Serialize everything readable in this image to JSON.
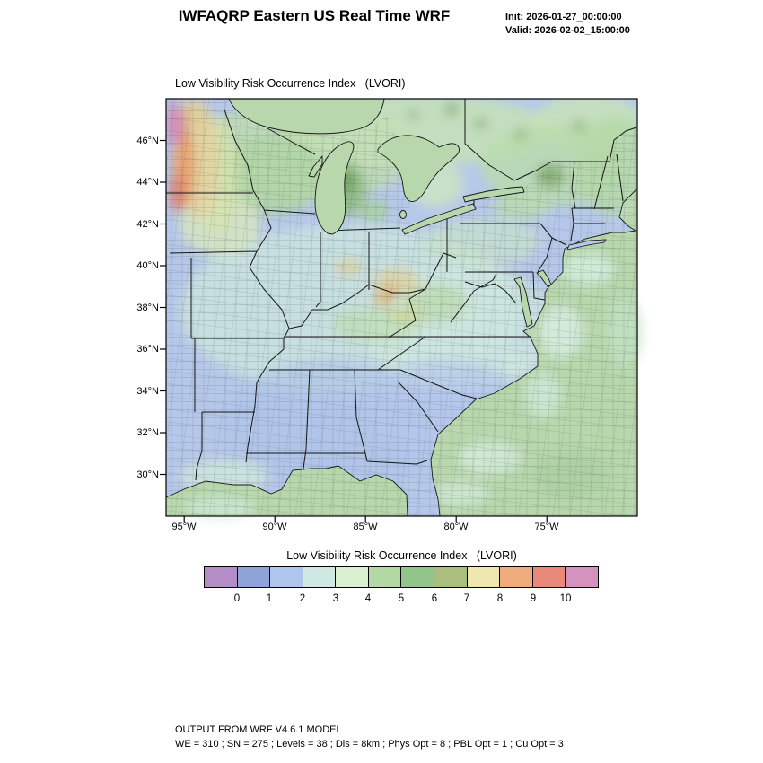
{
  "header": {
    "title": "IWFAQRP Eastern US Real Time WRF",
    "init": "Init: 2026-01-27_00:00:00",
    "valid": "Valid: 2026-02-02_15:00:00"
  },
  "map": {
    "title": "Low Visibility Risk Occurrence Index   (LVORI)",
    "lat_labels": [
      "46°N",
      "44°N",
      "42°N",
      "40°N",
      "38°N",
      "36°N",
      "34°N",
      "32°N",
      "30°N"
    ],
    "lon_labels": [
      "95°W",
      "90°W",
      "85°W",
      "80°W",
      "75°W"
    ]
  },
  "colorbar": {
    "title": "Low Visibility Risk Occurrence Index   (LVORI)",
    "tick_labels": [
      "0",
      "1",
      "2",
      "3",
      "4",
      "5",
      "6",
      "7",
      "8",
      "9",
      "10"
    ],
    "colors": [
      "#b48cc6",
      "#8fa3d8",
      "#aec6ec",
      "#cfe9e2",
      "#dbf0d0",
      "#b2d9a4",
      "#93c48b",
      "#aabf7e",
      "#efe6b0",
      "#f0ac7d",
      "#e8897b",
      "#d592be"
    ]
  },
  "footer": {
    "line1": "OUTPUT FROM WRF V4.6.1 MODEL",
    "line2": "WE = 310 ; SN = 275 ; Levels = 38 ; Dis = 8km ; Phys Opt = 8 ; PBL Opt = 1 ; Cu Opt = 3"
  }
}
